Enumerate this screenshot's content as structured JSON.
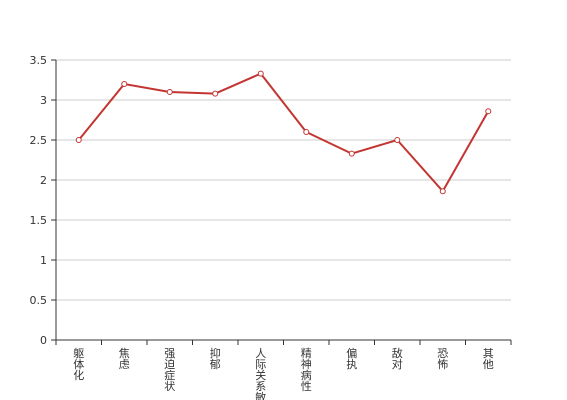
{
  "chart_data": {
    "type": "line",
    "title": "",
    "xlabel": "",
    "ylabel": "",
    "ylim": [
      0,
      3.5
    ],
    "yticks": [
      "0",
      "0.5",
      "1",
      "1.5",
      "2",
      "2.5",
      "3",
      "3.5"
    ],
    "categories": [
      "躯体化",
      "焦虑",
      "强迫症状",
      "抑郁",
      "人际关系敏感",
      "精神病性",
      "偏执",
      "敌对",
      "恐怖",
      "其他"
    ],
    "series": [
      {
        "values": [
          2.5,
          3.2,
          3.1,
          3.08,
          3.33,
          2.6,
          2.33,
          2.5,
          1.86,
          2.86
        ]
      }
    ],
    "grid": true,
    "colors": {
      "line": "#c23531",
      "grid": "#cccccc",
      "axis": "#333333"
    }
  }
}
